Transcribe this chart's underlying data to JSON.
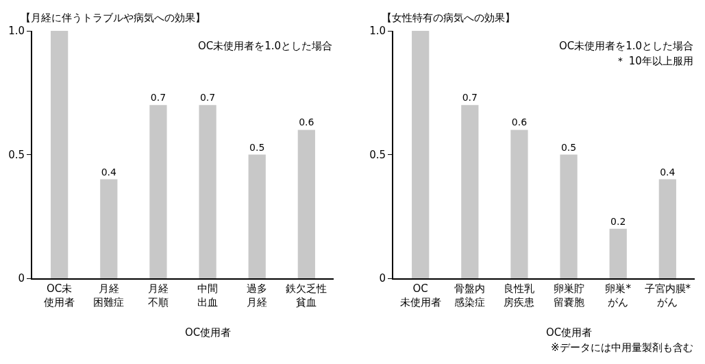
{
  "chart_data": [
    {
      "type": "bar",
      "title": "【月経に伴うトラブルや病気への効果】",
      "categories": [
        "OC未使用者",
        "月経困難症",
        "月経不順",
        "中間出血",
        "過多月経",
        "鉄欠乏性貧血"
      ],
      "values": [
        1.0,
        0.4,
        0.7,
        0.7,
        0.5,
        0.6
      ],
      "value_labels": [
        null,
        "0.4",
        "0.7",
        "0.7",
        "0.5",
        "0.6"
      ],
      "color": "#c8c8c8",
      "ylim": [
        0,
        1.0
      ],
      "yticks": [
        0,
        0.5,
        {
          "value": 1.0,
          "label": "1.0"
        }
      ],
      "annotations": [
        "OC未使用者を1.0とした場合",
        "OC使用者"
      ]
    },
    {
      "type": "bar",
      "title": "【女性特有の病気への効果】",
      "categories": [
        "OC未使用者",
        "骨盤内感染症",
        "良性乳房疾患",
        "卵巣貯留嚢胞",
        "卵巣*がん",
        "子宮内膜*がん"
      ],
      "values": [
        1.0,
        0.7,
        0.6,
        0.5,
        0.2,
        0.4
      ],
      "value_labels": [
        null,
        "0.7",
        "0.6",
        "0.5",
        "0.2",
        "0.4"
      ],
      "color": "#c8c8c8",
      "ylim": [
        0,
        1.0
      ],
      "yticks": [
        0,
        0.5,
        {
          "value": 1.0,
          "label": "1.0"
        }
      ],
      "annotations": [
        "OC未使用者を1.0とした場合",
        "＊ 10年以上服用",
        "OC使用者",
        "※データには中用量製剤も含む"
      ]
    }
  ]
}
